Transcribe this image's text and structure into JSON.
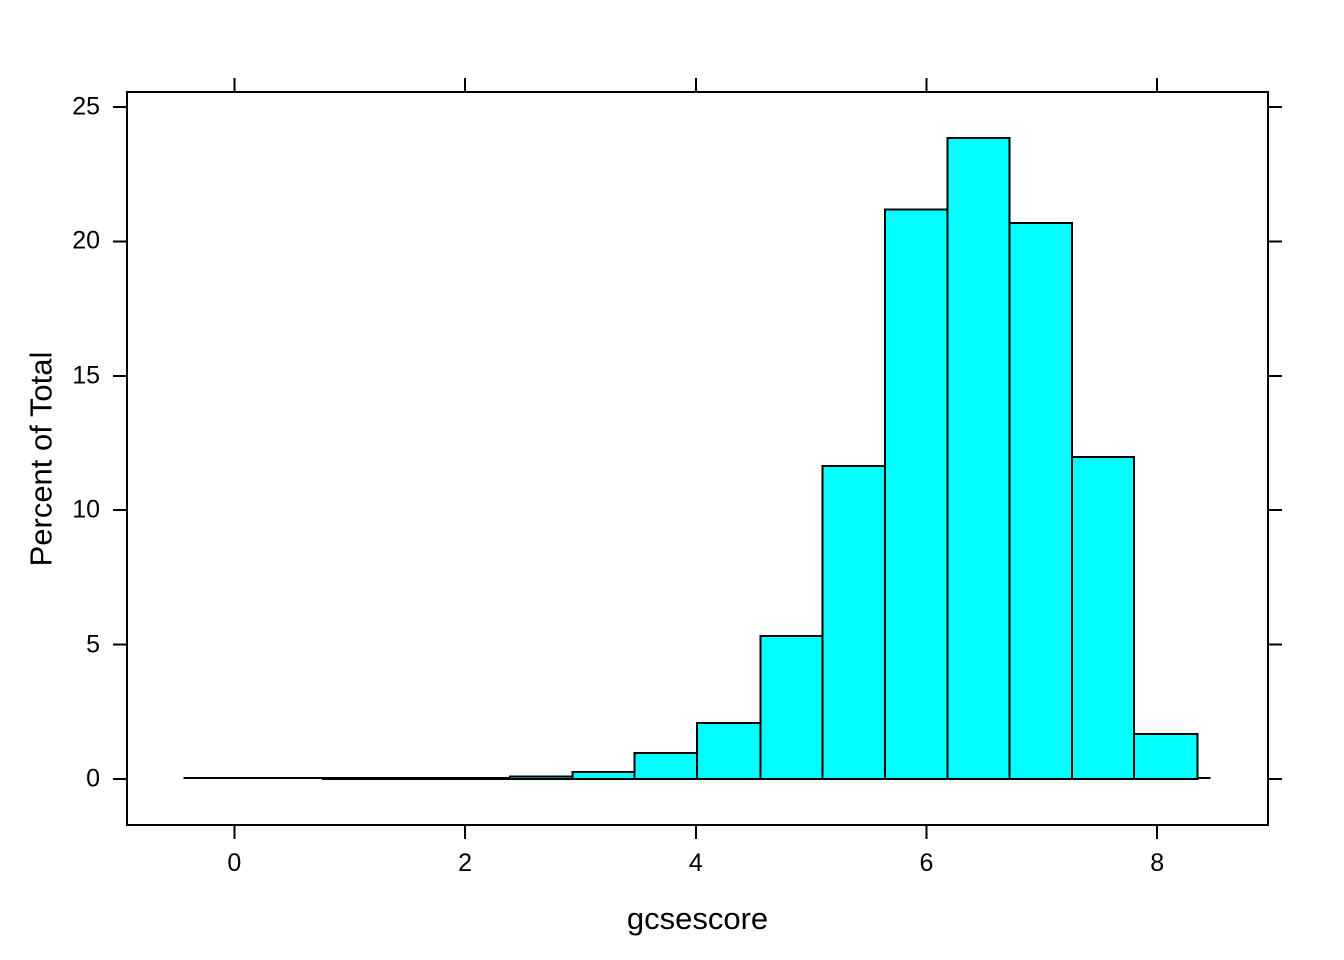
{
  "chart_data": {
    "type": "bar",
    "subtype": "histogram",
    "title": "",
    "xlabel": "gcsescore",
    "ylabel": "Percent of Total",
    "bin_edges": [
      -0.32,
      0.22,
      0.77,
      1.31,
      1.85,
      2.39,
      2.93,
      3.47,
      4.01,
      4.56,
      5.1,
      5.64,
      6.18,
      6.72,
      7.26,
      7.8,
      8.35
    ],
    "values": [
      0.0,
      0.0,
      0.01,
      0.01,
      0.03,
      0.1,
      0.26,
      0.97,
      2.08,
      5.32,
      11.64,
      21.18,
      23.84,
      20.68,
      11.98,
      1.67
    ],
    "x_ticks": [
      0,
      2,
      4,
      6,
      8
    ],
    "y_ticks": [
      0,
      5,
      10,
      15,
      20,
      25
    ],
    "xlim": [
      -0.93,
      8.96
    ],
    "ylim": [
      -1.71,
      25.56
    ],
    "baseline_extent": [
      -0.44,
      8.46
    ],
    "grid": false,
    "legend": null,
    "colors": {
      "bar_fill": "#00FFFF",
      "bar_border": "#000000",
      "axis": "#000000",
      "background": "#FFFFFF",
      "text": "#000000"
    }
  }
}
